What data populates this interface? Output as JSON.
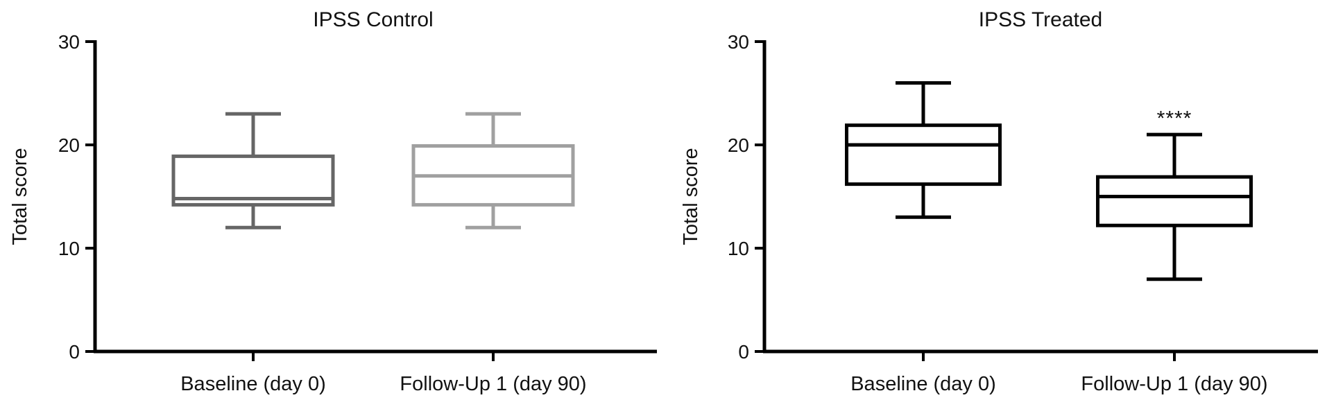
{
  "chart_data": [
    {
      "type": "box",
      "title": "IPSS Control",
      "ylabel": "Total score",
      "ylim": [
        0,
        30
      ],
      "yticks": [
        0,
        10,
        20,
        30
      ],
      "grid": false,
      "categories": [
        "Baseline (day 0)",
        "Follow-Up 1 (day 90)"
      ],
      "boxes": [
        {
          "category": "Baseline (day 0)",
          "min": 12,
          "q1": 14.2,
          "median": 14.8,
          "q3": 18.9,
          "max": 23,
          "color": "#666666"
        },
        {
          "category": "Follow-Up 1 (day 90)",
          "min": 12,
          "q1": 14.2,
          "median": 17,
          "q3": 19.9,
          "max": 23,
          "color": "#a0a0a0"
        }
      ],
      "annotations": []
    },
    {
      "type": "box",
      "title": "IPSS Treated",
      "ylabel": "Total score",
      "ylim": [
        0,
        30
      ],
      "yticks": [
        0,
        10,
        20,
        30
      ],
      "grid": false,
      "categories": [
        "Baseline (day 0)",
        "Follow-Up 1 (day 90)"
      ],
      "boxes": [
        {
          "category": "Baseline (day 0)",
          "min": 13,
          "q1": 16.2,
          "median": 20,
          "q3": 21.9,
          "max": 26,
          "color": "#000000"
        },
        {
          "category": "Follow-Up 1 (day 90)",
          "min": 7,
          "q1": 12.2,
          "median": 15,
          "q3": 16.9,
          "max": 21,
          "color": "#000000"
        }
      ],
      "annotations": [
        {
          "category": "Follow-Up 1 (day 90)",
          "text": "****",
          "y": 23
        }
      ]
    }
  ]
}
